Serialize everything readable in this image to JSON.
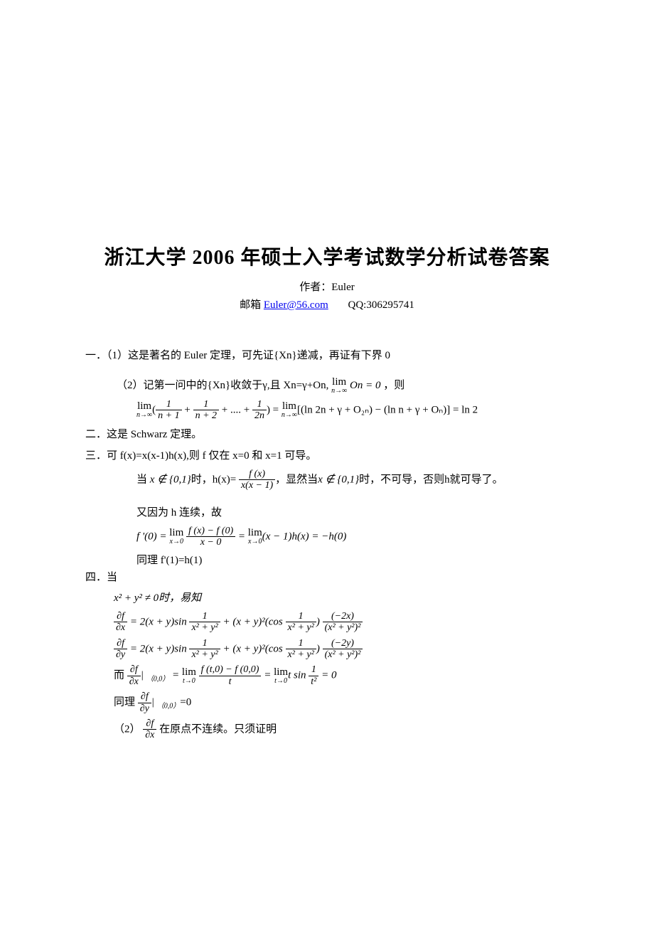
{
  "title": "浙江大学 2006 年硕士入学考试数学分析试卷答案",
  "author_label": "作者：",
  "author_name": "Euler",
  "email_label": "邮箱 ",
  "email": "Euler@56.com",
  "qq_label": "QQ:",
  "qq_number": "306295741",
  "p1_head": "一．（1）这是著名的 Euler 定理，可先证{Xn}递减，再证有下界 0",
  "p1_sub2_a": "（2）记第一问中的{Xn}收敛于",
  "p1_sub2_b": ",且 Xn=",
  "p1_sub2_c": "+On, ",
  "p1_sub2_d": " ，则",
  "p1_lim_on": "On = 0",
  "p1_formula_rhs": "[(ln 2n + γ + O₂ₙ) − (ln n + γ + Oₙ)] = ln 2",
  "p1_frac1_num": "1",
  "p1_frac1_den": "n + 1",
  "p1_frac2_num": "1",
  "p1_frac2_den": "n + 2",
  "p1_frac3_num": "1",
  "p1_frac3_den": "2n",
  "p1_dots": "+ .... +",
  "p2": "二．这是 Schwarz 定理。",
  "p3": "三．可 f(x)=x(x-1)h(x),则 f 仅在 x=0 和 x=1 可导。",
  "p3_line2_a": "当",
  "p3_line2_b": "x ∉ {0,1}",
  "p3_line2_c": "时，h(x)=",
  "p3_line2_d": "，显然当",
  "p3_line2_e": "x ∉ {0,1}",
  "p3_line2_f": "时，不可导，否则h就可导了。",
  "p3_frac_num": "f (x)",
  "p3_frac_den": "x(x − 1)",
  "p3_line3": "又因为 h 连续，故",
  "p3_formula2_lhs": "f '(0) = ",
  "p3_formula2_mid_num": "f (x) − f (0)",
  "p3_formula2_mid_den": "x − 0",
  "p3_formula2_rhs": "(x − 1)h(x) = −h(0)",
  "p3_line4": "同理 f'(1)=h(1)",
  "p4_head": "四．当",
  "p4_line1": "x² + y² ≠ 0时，易知",
  "p4_pd_fx": "∂f",
  "p4_pd_x": "∂x",
  "p4_pd_y": "∂y",
  "p4_eq1_a": " = 2(x + y)sin",
  "p4_eq1_frac1_num": "1",
  "p4_eq1_frac1_den": "x² + y²",
  "p4_eq1_b": " + (x + y)²(cos",
  "p4_eq1_c": ")",
  "p4_eq1_frac2_num": "(−2x)",
  "p4_eq1_frac2_den": "(x² + y²)²",
  "p4_eq2_frac2_num": "(−2y)",
  "p4_eq3_a": "而",
  "p4_eq3_b": "| ",
  "p4_eq3_sub": "（0,0）",
  "p4_eq3_c": " = ",
  "p4_eq3_frac_num": "f (t,0) − f (0,0)",
  "p4_eq3_frac_den": "t",
  "p4_eq3_d": "t sin",
  "p4_eq3_frac2_num": "1",
  "p4_eq3_frac2_den": "t²",
  "p4_eq3_e": " = 0",
  "p4_line5_a": "同理",
  "p4_line5_b": "| ",
  "p4_line5_c": "=0",
  "p4_line6_a": "（2）",
  "p4_line6_b": "在原点不连续。只须证明",
  "colors": {
    "text": "#000000",
    "link": "#0000ee",
    "background": "#ffffff"
  },
  "typography": {
    "title_fontsize": 28,
    "body_fontsize": 15,
    "math_fontsize": 14,
    "sub_fontsize": 10
  },
  "gamma": "γ",
  "lim_label": "lim",
  "lim_ninf": "n→∞",
  "lim_x0": "x→0",
  "lim_t0": "t→0",
  "eq_sign": " = "
}
